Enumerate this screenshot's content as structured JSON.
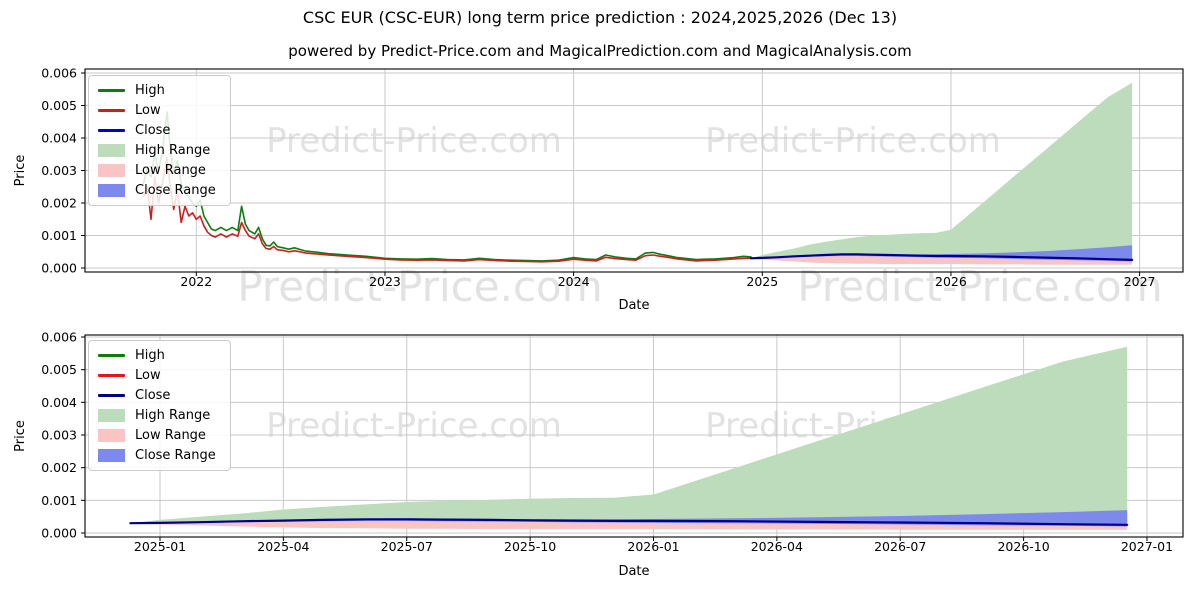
{
  "page": {
    "title": "CSC EUR (CSC-EUR) long term price prediction : 2024,2025,2026 (Dec 13)",
    "subtitle": "powered by Predict-Price.com and MagicalPrediction.com and MagicalAnalysis.com"
  },
  "watermark": {
    "text": "Predict-Price.com",
    "color": "#e2e2e2"
  },
  "colors": {
    "grid": "#c9c9c9",
    "spine": "#000000",
    "high_range_fill": "#bcdcbc",
    "low_range_fill": "#f9c4c4",
    "close_range_fill": "#7d8aeb"
  },
  "chart_data": [
    {
      "type": "line",
      "title": "long term price prediction (historical 2021-2024 + forecast to 2027)",
      "xlabel": "Date",
      "ylabel": "Price",
      "xlim": [
        2021.41,
        2027.23
      ],
      "ylim": [
        0,
        0.006
      ],
      "grid": true,
      "legend_position": "upper left",
      "xticks": [
        {
          "v": 2022,
          "label": "2022"
        },
        {
          "v": 2023,
          "label": "2023"
        },
        {
          "v": 2024,
          "label": "2024"
        },
        {
          "v": 2025,
          "label": "2025"
        },
        {
          "v": 2026,
          "label": "2026"
        },
        {
          "v": 2027,
          "label": "2027"
        }
      ],
      "yticks": [
        {
          "v": 0.0,
          "label": "0.000"
        },
        {
          "v": 0.001,
          "label": "0.001"
        },
        {
          "v": 0.002,
          "label": "0.002"
        },
        {
          "v": 0.003,
          "label": "0.003"
        },
        {
          "v": 0.004,
          "label": "0.004"
        },
        {
          "v": 0.005,
          "label": "0.005"
        },
        {
          "v": 0.006,
          "label": "0.006"
        }
      ],
      "legend": [
        {
          "label": "High",
          "swatch": "line",
          "color": "#0e7c0e"
        },
        {
          "label": "Low",
          "swatch": "line",
          "color": "#c32222"
        },
        {
          "label": "Close",
          "swatch": "line",
          "color": "#0000cd"
        },
        {
          "label": "High Range",
          "swatch": "patch",
          "color": "#bcdcbc"
        },
        {
          "label": "Low Range",
          "swatch": "patch",
          "color": "#f9c4c4"
        },
        {
          "label": "Close Range",
          "swatch": "patch",
          "color": "#7d8aeb"
        }
      ],
      "line_colors": {
        "high": "#0e7c0e",
        "low": "#cc1f1f",
        "close": "#00008b"
      },
      "series": {
        "historical": {
          "x": [
            2021.72,
            2021.74,
            2021.76,
            2021.78,
            2021.8,
            2021.82,
            2021.845,
            2021.86,
            2021.88,
            2021.9,
            2021.92,
            2021.94,
            2021.96,
            2021.98,
            2022.0,
            2022.02,
            2022.04,
            2022.06,
            2022.08,
            2022.1,
            2022.13,
            2022.16,
            2022.19,
            2022.22,
            2022.24,
            2022.26,
            2022.28,
            2022.31,
            2022.33,
            2022.35,
            2022.37,
            2022.39,
            2022.41,
            2022.43,
            2022.46,
            2022.49,
            2022.52,
            2022.55,
            2022.58,
            2022.62,
            2022.66,
            2022.7,
            2022.75,
            2022.8,
            2022.85,
            2022.9,
            2022.95,
            2023.0,
            2023.08,
            2023.17,
            2023.25,
            2023.33,
            2023.42,
            2023.5,
            2023.58,
            2023.67,
            2023.75,
            2023.83,
            2023.92,
            2024.0,
            2024.06,
            2024.12,
            2024.17,
            2024.22,
            2024.28,
            2024.33,
            2024.38,
            2024.42,
            2024.46,
            2024.5,
            2024.55,
            2024.6,
            2024.65,
            2024.7,
            2024.75,
            2024.8,
            2024.85,
            2024.9,
            2024.94
          ],
          "high": [
            0.0026,
            0.0031,
            0.0028,
            0.0035,
            0.003,
            0.0036,
            0.0048,
            0.0038,
            0.0029,
            0.0033,
            0.0026,
            0.0023,
            0.0022,
            0.002,
            0.0019,
            0.0021,
            0.0016,
            0.0014,
            0.0012,
            0.00115,
            0.00125,
            0.00115,
            0.00125,
            0.00115,
            0.0019,
            0.00135,
            0.00115,
            0.00105,
            0.00125,
            0.0009,
            0.0007,
            0.00068,
            0.0008,
            0.00066,
            0.00062,
            0.00058,
            0.00062,
            0.00057,
            0.00052,
            0.0005,
            0.00047,
            0.00044,
            0.00042,
            0.0004,
            0.00038,
            0.00036,
            0.00033,
            0.0003,
            0.00028,
            0.00027,
            0.00029,
            0.00026,
            0.00025,
            0.0003,
            0.00026,
            0.00024,
            0.00023,
            0.00022,
            0.00024,
            0.00032,
            0.00028,
            0.00026,
            0.0004,
            0.00034,
            0.0003,
            0.00028,
            0.00046,
            0.00048,
            0.00042,
            0.00038,
            0.00032,
            0.00029,
            0.00026,
            0.00027,
            0.00028,
            0.0003,
            0.00032,
            0.00036,
            0.00034
          ],
          "low": [
            0.0022,
            0.0025,
            0.0015,
            0.0028,
            0.002,
            0.0026,
            0.0034,
            0.0026,
            0.0018,
            0.0024,
            0.0014,
            0.0019,
            0.0016,
            0.0017,
            0.0015,
            0.0016,
            0.0013,
            0.0011,
            0.001,
            0.00095,
            0.00105,
            0.00095,
            0.00105,
            0.00098,
            0.0014,
            0.00115,
            0.00098,
            0.0009,
            0.00105,
            0.00075,
            0.0006,
            0.00058,
            0.00066,
            0.00056,
            0.00054,
            0.0005,
            0.00053,
            0.0005,
            0.00046,
            0.00044,
            0.00042,
            0.0004,
            0.00038,
            0.00036,
            0.00034,
            0.00032,
            0.0003,
            0.00027,
            0.00025,
            0.00024,
            0.00025,
            0.00023,
            0.00022,
            0.00026,
            0.00023,
            0.00021,
            0.0002,
            0.00019,
            0.00021,
            0.00027,
            0.00024,
            0.00022,
            0.00033,
            0.00029,
            0.00026,
            0.00024,
            0.00038,
            0.0004,
            0.00036,
            0.00033,
            0.00028,
            0.00025,
            0.00022,
            0.00023,
            0.00024,
            0.00026,
            0.00028,
            0.0003,
            0.0003
          ]
        },
        "prediction": {
          "x": [
            2024.94,
            2025.0,
            2025.08,
            2025.17,
            2025.25,
            2025.33,
            2025.42,
            2025.5,
            2025.58,
            2025.67,
            2025.75,
            2025.83,
            2025.92,
            2026.0,
            2026.17,
            2026.33,
            2026.5,
            2026.67,
            2026.83,
            2026.96
          ],
          "high_range_top": [
            0.0003,
            0.0004,
            0.0005,
            0.0006,
            0.00072,
            0.0008,
            0.00088,
            0.00095,
            0.00099,
            0.00102,
            0.00105,
            0.00107,
            0.00108,
            0.00118,
            0.00201,
            0.0028,
            0.00363,
            0.00447,
            0.00525,
            0.0057
          ],
          "close": [
            0.0003,
            0.00031,
            0.00033,
            0.00036,
            0.00038,
            0.0004,
            0.00042,
            0.00042,
            0.00041,
            0.0004,
            0.00039,
            0.00038,
            0.00037,
            0.00037,
            0.00036,
            0.00034,
            0.00032,
            0.0003,
            0.00027,
            0.00025
          ],
          "close_range_top": [
            0.0003,
            0.00032,
            0.00034,
            0.00037,
            0.0004,
            0.00042,
            0.00044,
            0.00045,
            0.00044,
            0.00043,
            0.00042,
            0.00042,
            0.00042,
            0.00043,
            0.00045,
            0.00048,
            0.00052,
            0.00058,
            0.00064,
            0.0007
          ],
          "close_range_bottom": [
            0.0003,
            0.0003,
            0.00031,
            0.00033,
            0.00035,
            0.00036,
            0.00037,
            0.00037,
            0.00036,
            0.00035,
            0.00034,
            0.00033,
            0.00032,
            0.00031,
            0.0003,
            0.00028,
            0.00026,
            0.00024,
            0.00022,
            0.0002
          ],
          "low_range_bottom": [
            0.00028,
            0.00026,
            0.00023,
            0.0002,
            0.00017,
            0.00015,
            0.00014,
            0.00013,
            0.00013,
            0.00012,
            0.00012,
            0.00012,
            0.00012,
            0.00012,
            0.00011,
            0.00011,
            0.0001,
            0.0001,
            0.0001,
            0.0001
          ]
        }
      }
    },
    {
      "type": "line",
      "title": "forecast detail 2025-01 to 2027-01",
      "xlabel": "Date",
      "ylabel": "Price",
      "xlim": [
        2024.848,
        2027.073
      ],
      "ylim": [
        0,
        0.006
      ],
      "grid": true,
      "legend_position": "upper left",
      "xticks": [
        {
          "v": 2025.0,
          "label": "2025-01"
        },
        {
          "v": 2025.25,
          "label": "2025-04"
        },
        {
          "v": 2025.5,
          "label": "2025-07"
        },
        {
          "v": 2025.75,
          "label": "2025-10"
        },
        {
          "v": 2026.0,
          "label": "2026-01"
        },
        {
          "v": 2026.25,
          "label": "2026-04"
        },
        {
          "v": 2026.5,
          "label": "2026-07"
        },
        {
          "v": 2026.75,
          "label": "2026-10"
        },
        {
          "v": 2027.0,
          "label": "2027-01"
        }
      ],
      "yticks": [
        {
          "v": 0.0,
          "label": "0.000"
        },
        {
          "v": 0.001,
          "label": "0.001"
        },
        {
          "v": 0.002,
          "label": "0.002"
        },
        {
          "v": 0.003,
          "label": "0.003"
        },
        {
          "v": 0.004,
          "label": "0.004"
        },
        {
          "v": 0.005,
          "label": "0.005"
        },
        {
          "v": 0.006,
          "label": "0.006"
        }
      ],
      "legend": [
        {
          "label": "High",
          "swatch": "line",
          "color": "#0e7c0e"
        },
        {
          "label": "Low",
          "swatch": "line",
          "color": "#e81414"
        },
        {
          "label": "Close",
          "swatch": "line",
          "color": "#00008b"
        },
        {
          "label": "High Range",
          "swatch": "patch",
          "color": "#bcdcbc"
        },
        {
          "label": "Low Range",
          "swatch": "patch",
          "color": "#f9c4c4"
        },
        {
          "label": "Close Range",
          "swatch": "patch",
          "color": "#7d8aeb"
        }
      ],
      "line_colors": {
        "high": "#0e7c0e",
        "low": "#e81414",
        "close": "#00008b"
      },
      "series": {
        "prediction": {
          "x": [
            2024.94,
            2025.0,
            2025.08,
            2025.17,
            2025.25,
            2025.33,
            2025.42,
            2025.5,
            2025.58,
            2025.67,
            2025.75,
            2025.83,
            2025.92,
            2026.0,
            2026.17,
            2026.33,
            2026.5,
            2026.67,
            2026.83,
            2026.96
          ],
          "high_range_top": [
            0.0003,
            0.0004,
            0.0005,
            0.0006,
            0.00072,
            0.0008,
            0.00088,
            0.00095,
            0.00099,
            0.00102,
            0.00105,
            0.00107,
            0.00108,
            0.00118,
            0.00201,
            0.0028,
            0.00363,
            0.00447,
            0.00525,
            0.0057
          ],
          "close": [
            0.0003,
            0.00031,
            0.00033,
            0.00036,
            0.00038,
            0.0004,
            0.00042,
            0.00042,
            0.00041,
            0.0004,
            0.00039,
            0.00038,
            0.00037,
            0.00037,
            0.00036,
            0.00034,
            0.00032,
            0.0003,
            0.00027,
            0.00025
          ],
          "close_range_top": [
            0.0003,
            0.00032,
            0.00034,
            0.00037,
            0.0004,
            0.00042,
            0.00044,
            0.00045,
            0.00044,
            0.00043,
            0.00042,
            0.00042,
            0.00042,
            0.00043,
            0.00045,
            0.00048,
            0.00052,
            0.00058,
            0.00064,
            0.0007
          ],
          "close_range_bottom": [
            0.0003,
            0.0003,
            0.00031,
            0.00033,
            0.00035,
            0.00036,
            0.00037,
            0.00037,
            0.00036,
            0.00035,
            0.00034,
            0.00033,
            0.00032,
            0.00031,
            0.0003,
            0.00028,
            0.00026,
            0.00024,
            0.00022,
            0.0002
          ],
          "low_range_bottom": [
            0.00028,
            0.00026,
            0.00023,
            0.0002,
            0.00017,
            0.00015,
            0.00014,
            0.00013,
            0.00013,
            0.00012,
            0.00012,
            0.00012,
            0.00012,
            0.00012,
            0.00011,
            0.00011,
            0.0001,
            0.0001,
            0.0001,
            0.0001
          ]
        }
      }
    }
  ]
}
